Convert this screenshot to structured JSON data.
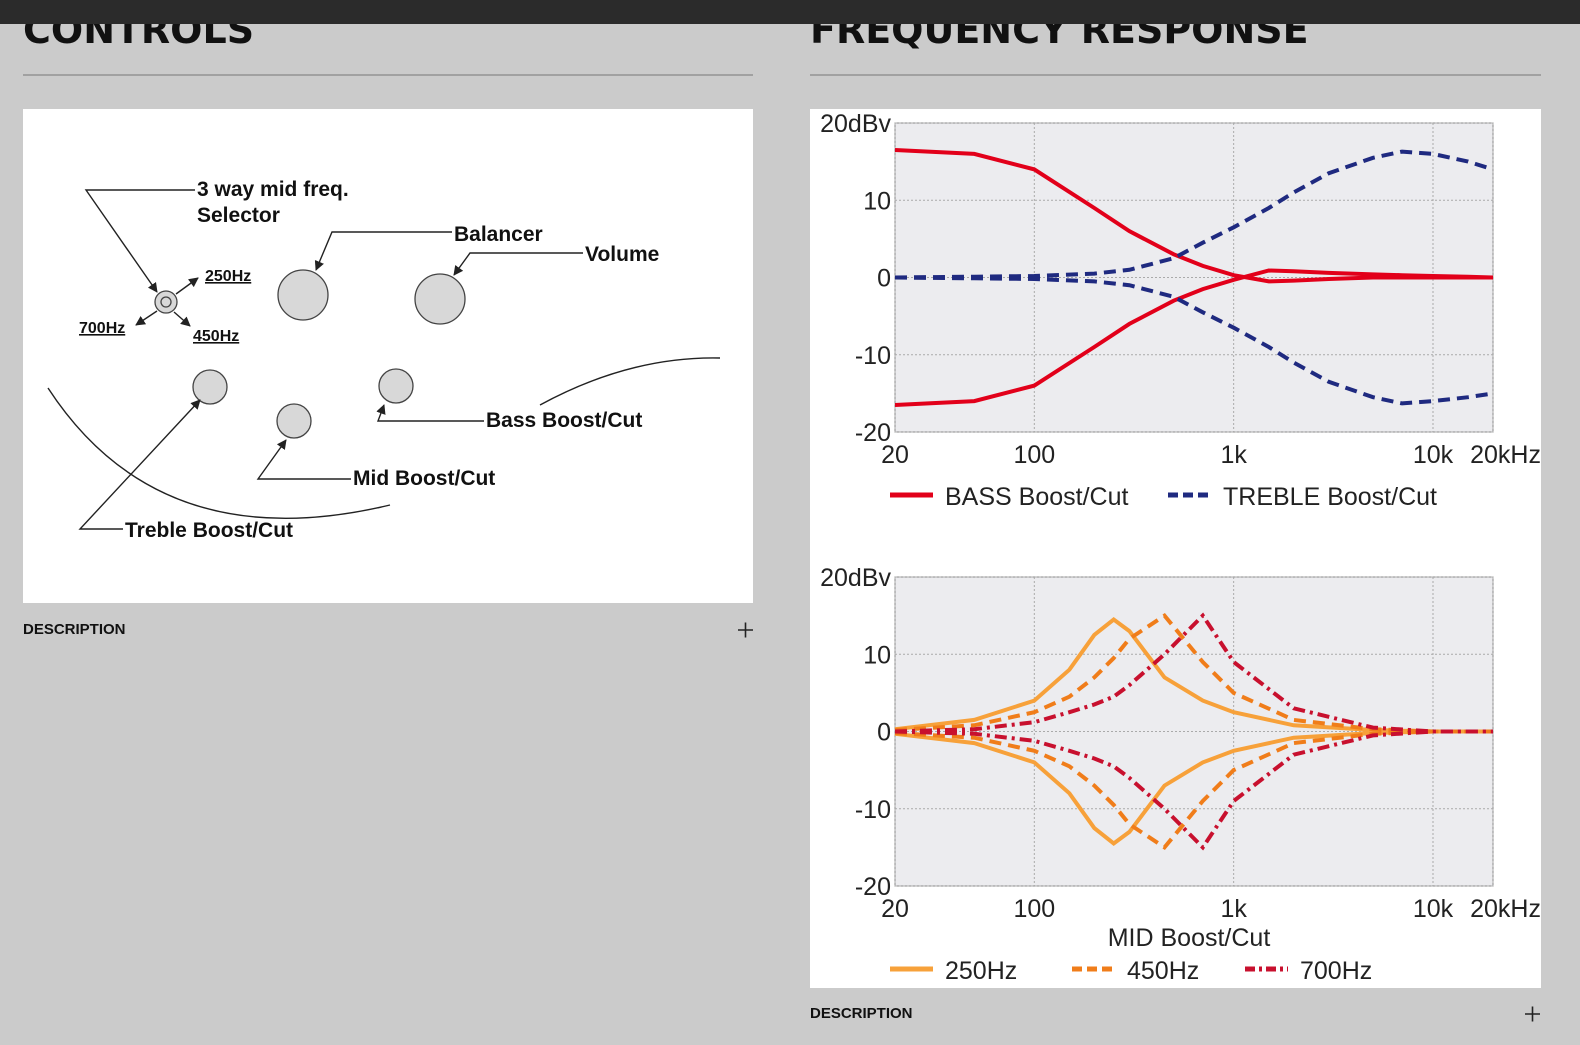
{
  "header": {
    "controls_title": "CONTROLS",
    "response_title": "FREQUENCY RESPONSE"
  },
  "diagram": {
    "labels": [
      "3 way mid freq.",
      "Selector",
      "250Hz",
      "700Hz",
      "450Hz",
      "Balancer",
      "Volume",
      "Bass Boost/Cut",
      "Mid Boost/Cut",
      "Treble Boost/Cut"
    ]
  },
  "footer": {
    "controls_description": "DESCRIPTION",
    "response_description": "DESCRIPTION"
  },
  "chart_data": [
    {
      "type": "line",
      "xscale": "log",
      "grid": true,
      "x": [
        20,
        50,
        100,
        200,
        300,
        500,
        700,
        1000,
        1500,
        2000,
        3000,
        5000,
        7000,
        10000,
        15000,
        20000
      ],
      "xlim": [
        20,
        20000
      ],
      "ylim": [
        -20,
        20
      ],
      "xticks": [
        20,
        100,
        {
          "value": 1000,
          "label": "1k"
        },
        {
          "value": 10000,
          "label": "10k"
        },
        {
          "value": 20000,
          "label": "20kHz"
        }
      ],
      "yticks": [
        {
          "value": 20,
          "label": "20dBv"
        },
        10,
        0,
        -10,
        -20
      ],
      "series": [
        {
          "name": "BASS Boost/Cut",
          "color": "#e2001a",
          "dash": "solid",
          "boost": [
            16.5,
            16,
            14,
            9,
            6,
            3,
            1.5,
            0.3,
            -0.5,
            -0.4,
            -0.2,
            0,
            0,
            0,
            0,
            0
          ],
          "cut": [
            -16.5,
            -16,
            -14,
            -9,
            -6,
            -3,
            -1.5,
            -0.3,
            0.9,
            0.8,
            0.6,
            0.4,
            0.3,
            0.2,
            0.1,
            0
          ]
        },
        {
          "name": "TREBLE Boost/Cut",
          "color": "#1f2a80",
          "dash": "dashed",
          "boost": [
            0,
            0.1,
            0.2,
            0.5,
            1,
            2.5,
            4.5,
            6.5,
            9,
            11,
            13.5,
            15.5,
            16.3,
            16,
            15,
            14
          ],
          "cut": [
            0,
            -0.1,
            -0.2,
            -0.5,
            -1,
            -2.5,
            -4.5,
            -6.5,
            -9,
            -11,
            -13.5,
            -15.5,
            -16.3,
            -16,
            -15.5,
            -15
          ]
        }
      ]
    },
    {
      "type": "line",
      "xscale": "log",
      "grid": true,
      "xlabel": "MID Boost/Cut",
      "x": [
        20,
        50,
        100,
        150,
        200,
        250,
        300,
        450,
        700,
        1000,
        2000,
        5000,
        10000,
        20000
      ],
      "xlim": [
        20,
        20000
      ],
      "ylim": [
        -20,
        20
      ],
      "xticks": [
        20,
        100,
        {
          "value": 1000,
          "label": "1k"
        },
        {
          "value": 10000,
          "label": "10k"
        },
        {
          "value": 20000,
          "label": "20kHz"
        }
      ],
      "yticks": [
        {
          "value": 20,
          "label": "20dBv"
        },
        10,
        0,
        -10,
        -20
      ],
      "series": [
        {
          "name": "250Hz",
          "color": "#f7a13a",
          "dash": "solid",
          "boost": [
            0.3,
            1.5,
            4,
            8,
            12.5,
            14.5,
            13,
            7,
            4,
            2.5,
            0.8,
            0.2,
            0,
            0
          ],
          "cut": [
            -0.3,
            -1.5,
            -4,
            -8,
            -12.5,
            -14.5,
            -13,
            -7,
            -4,
            -2.5,
            -0.8,
            -0.2,
            0,
            0
          ]
        },
        {
          "name": "450Hz",
          "color": "#f07d1a",
          "dash": "dashed",
          "boost": [
            0.2,
            0.8,
            2.5,
            4.5,
            7,
            9.5,
            12,
            15,
            9,
            5,
            1.5,
            0.3,
            0,
            0
          ],
          "cut": [
            -0.2,
            -0.8,
            -2.5,
            -4.5,
            -7,
            -9.5,
            -12,
            -15,
            -9,
            -5,
            -1.5,
            -0.3,
            0,
            0
          ]
        },
        {
          "name": "700Hz",
          "color": "#c8102e",
          "dash": "dashdot",
          "boost": [
            0,
            0.3,
            1.2,
            2.5,
            3.5,
            4.5,
            6,
            10,
            15,
            9,
            3,
            0.5,
            0,
            0
          ],
          "cut": [
            0,
            -0.3,
            -1.2,
            -2.5,
            -3.5,
            -4.5,
            -6,
            -10,
            -15,
            -9,
            -3,
            -0.5,
            0,
            0
          ]
        }
      ]
    }
  ]
}
